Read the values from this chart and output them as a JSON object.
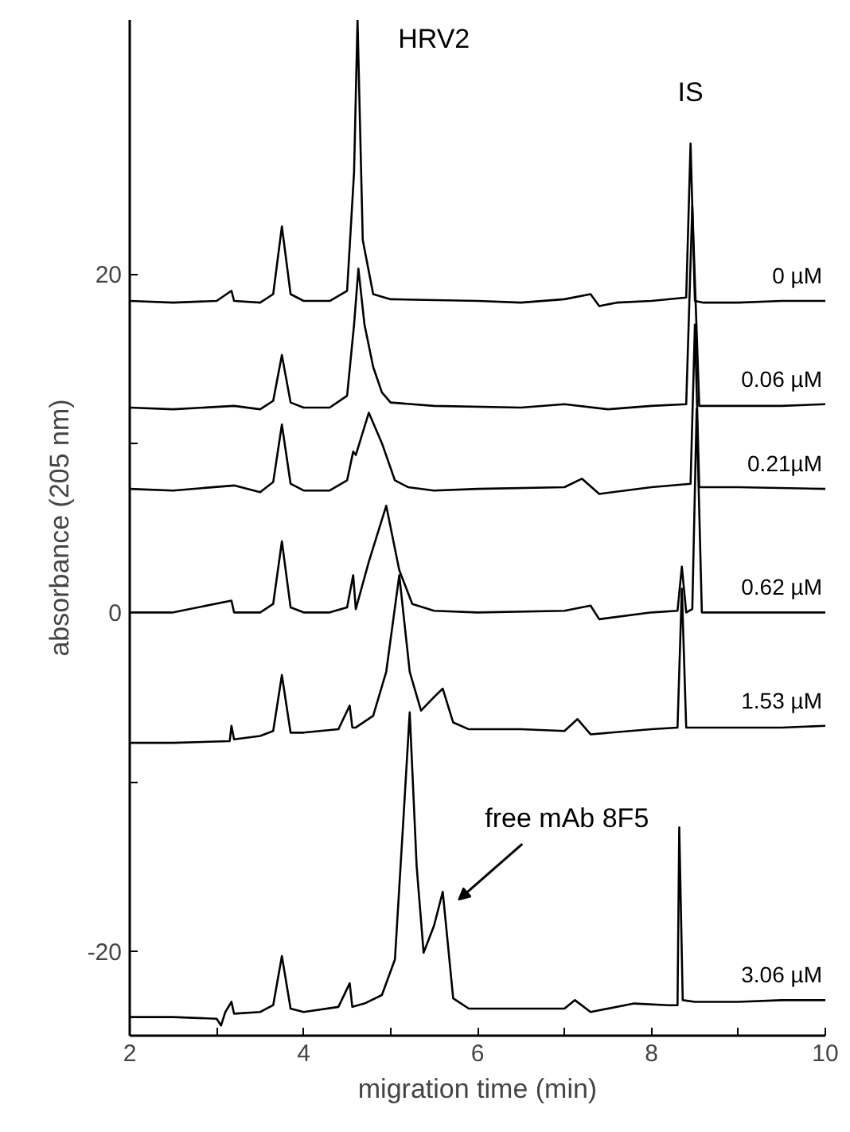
{
  "chart_data": {
    "type": "line",
    "xlabel": "migration time (min)",
    "ylabel": "absorbance (205 nm)",
    "xlim": [
      2,
      10
    ],
    "ylim": [
      -25,
      35
    ],
    "xticks": [
      2,
      {
        "value": 3,
        "label": null
      },
      4,
      {
        "value": 5,
        "label": null
      },
      6,
      {
        "value": 7,
        "label": null
      },
      8,
      {
        "value": 9,
        "label": null
      },
      10
    ],
    "yticks": [
      -20,
      {
        "value": -10,
        "label": null
      },
      0,
      {
        "value": 10,
        "label": null
      },
      20
    ],
    "grid": false,
    "marker": "none",
    "line_style": "solid",
    "annotations": [
      {
        "text": "HRV2",
        "x": 4.62,
        "y": 35
      },
      {
        "text": "IS",
        "x": 8.45,
        "y": 27.7
      },
      {
        "text": "free mAb 8F5",
        "x": 5.6,
        "y": -16.5
      }
    ],
    "series": [
      {
        "name": "0 µM",
        "color": "#000000",
        "x": [
          2,
          2.5,
          3,
          3.17,
          3.2,
          3.5,
          3.65,
          3.75,
          3.85,
          4.0,
          4.3,
          4.5,
          4.58,
          4.62,
          4.68,
          4.8,
          5.0,
          6.0,
          6.5,
          7.0,
          7.3,
          7.4,
          7.6,
          8.0,
          8.4,
          8.45,
          8.5,
          8.6,
          9.0,
          9.5,
          10
        ],
        "values": [
          18.4,
          18.3,
          18.4,
          19.0,
          18.4,
          18.3,
          18.8,
          22.8,
          18.8,
          18.4,
          18.4,
          19.0,
          26,
          35,
          22,
          18.8,
          18.5,
          18.4,
          18.3,
          18.5,
          18.8,
          18.1,
          18.3,
          18.4,
          18.6,
          27.7,
          18.4,
          18.3,
          18.3,
          18.4,
          18.4
        ]
      },
      {
        "name": "0.06 µM",
        "color": "#000000",
        "x": [
          2,
          2.5,
          3.2,
          3.5,
          3.65,
          3.75,
          3.85,
          4.0,
          4.3,
          4.5,
          4.58,
          4.63,
          4.7,
          4.8,
          4.9,
          5.0,
          5.5,
          6.5,
          7.0,
          7.5,
          8.0,
          8.4,
          8.47,
          8.55,
          9.0,
          9.5,
          10
        ],
        "values": [
          12.1,
          12.0,
          12.2,
          12.0,
          12.5,
          15.2,
          12.4,
          12.1,
          12.1,
          12.8,
          17,
          20.3,
          17,
          14.5,
          13,
          12.4,
          12.2,
          12.1,
          12.3,
          12.0,
          12.2,
          12.3,
          24,
          12.2,
          12.2,
          12.2,
          12.3
        ]
      },
      {
        "name": "0.21µM",
        "color": "#000000",
        "x": [
          2,
          2.5,
          3.2,
          3.5,
          3.65,
          3.75,
          3.85,
          4.0,
          4.3,
          4.5,
          4.57,
          4.6,
          4.75,
          4.9,
          5.05,
          5.2,
          5.5,
          6.0,
          7.0,
          7.2,
          7.4,
          8.0,
          8.45,
          8.5,
          8.55,
          9.0,
          10
        ],
        "values": [
          7.3,
          7.2,
          7.5,
          7.1,
          7.7,
          11.1,
          7.6,
          7.2,
          7.2,
          7.8,
          9.5,
          9.3,
          11.8,
          10,
          7.8,
          7.4,
          7.2,
          7.3,
          7.4,
          7.9,
          7.0,
          7.4,
          7.6,
          17,
          7.4,
          7.4,
          7.3
        ]
      },
      {
        "name": "0.62 µM",
        "color": "#000000",
        "x": [
          2,
          2.5,
          3.17,
          3.2,
          3.5,
          3.65,
          3.75,
          3.85,
          4.0,
          4.3,
          4.5,
          4.57,
          4.6,
          4.75,
          4.95,
          5.1,
          5.25,
          5.5,
          6.0,
          7.0,
          7.3,
          7.4,
          8.0,
          8.3,
          8.35,
          8.4,
          8.47,
          8.52,
          8.58,
          9.0,
          10
        ],
        "values": [
          0,
          0,
          0.7,
          0,
          0,
          0.5,
          4.2,
          0.3,
          0,
          0,
          0.3,
          2.2,
          0.2,
          3.0,
          6.3,
          2.5,
          0.5,
          0.1,
          0,
          0.1,
          0.4,
          -0.4,
          0,
          0.1,
          2.7,
          0,
          0.2,
          12,
          0,
          0,
          0
        ]
      },
      {
        "name": "1.53 µM",
        "color": "#000000",
        "x": [
          2,
          2.5,
          3.15,
          3.17,
          3.2,
          3.5,
          3.65,
          3.75,
          3.85,
          4.0,
          4.4,
          4.53,
          4.56,
          4.6,
          4.8,
          4.95,
          5.1,
          5.22,
          5.35,
          5.5,
          5.6,
          5.72,
          5.9,
          6.5,
          7.0,
          7.15,
          7.3,
          8.0,
          8.3,
          8.35,
          8.4,
          9.0,
          9.5,
          10
        ],
        "values": [
          -7.7,
          -7.7,
          -7.6,
          -6.7,
          -7.5,
          -7.3,
          -7.0,
          -3.7,
          -7.1,
          -7.1,
          -6.9,
          -5.5,
          -6.8,
          -6.8,
          -6.1,
          -3.5,
          2.2,
          -3.5,
          -5.8,
          -5.0,
          -4.5,
          -6.5,
          -6.9,
          -6.9,
          -7.0,
          -6.3,
          -7.2,
          -6.9,
          -6.8,
          1.4,
          -6.8,
          -6.8,
          -6.8,
          -6.7
        ]
      },
      {
        "name": "3.06 µM",
        "color": "#000000",
        "x": [
          2,
          2.5,
          3.0,
          3.05,
          3.1,
          3.17,
          3.2,
          3.5,
          3.65,
          3.75,
          3.85,
          4.0,
          4.4,
          4.53,
          4.56,
          4.7,
          4.9,
          5.05,
          5.15,
          5.22,
          5.3,
          5.38,
          5.5,
          5.6,
          5.72,
          5.9,
          6.5,
          7.0,
          7.12,
          7.3,
          7.8,
          8.2,
          8.3,
          8.32,
          8.36,
          8.5,
          9.0,
          9.5,
          10
        ],
        "values": [
          -23.9,
          -23.9,
          -24.0,
          -24.4,
          -23.6,
          -23.0,
          -23.7,
          -23.6,
          -23.2,
          -20.3,
          -23.4,
          -23.6,
          -23.3,
          -21.9,
          -23.3,
          -23.1,
          -22.6,
          -20.5,
          -12,
          -5.9,
          -15,
          -20.1,
          -18.5,
          -16.5,
          -22.8,
          -23.4,
          -23.4,
          -23.4,
          -22.9,
          -23.6,
          -23.1,
          -23.2,
          -23.2,
          -12.7,
          -22.9,
          -23.0,
          -23.0,
          -22.9,
          -22.9
        ]
      }
    ]
  }
}
